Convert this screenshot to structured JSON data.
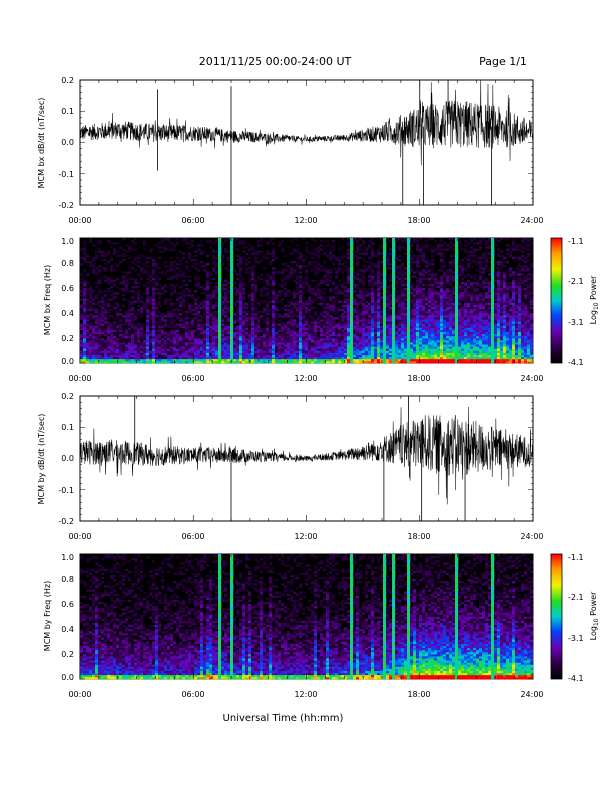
{
  "header": {
    "title": "2011/11/25  00:00-24:00 UT",
    "page": "Page 1/1"
  },
  "xaxis_label": "Universal Time (hh:mm)",
  "colorbar": {
    "label": "Log10 Power",
    "ticks": [
      "-1.1",
      "-2.1",
      "-3.1",
      "-4.1"
    ],
    "colors": [
      "#ff0000",
      "#ff9a00",
      "#f2f200",
      "#22dd22",
      "#00cccc",
      "#0044ff",
      "#6a00b0",
      "#2a0040",
      "#000000"
    ]
  },
  "chart_data": [
    {
      "type": "line",
      "title": "",
      "ylabel": "MCM bx dB/dt (nT/sec)",
      "xlabel": "",
      "x_ticks": [
        "00:00",
        "06:00",
        "12:00",
        "18:00",
        "24:00"
      ],
      "y_ticks": [
        "0.2",
        "0.1",
        "0.0",
        "-0.1",
        "-0.2"
      ],
      "xlim": [
        0,
        24
      ],
      "ylim": [
        -0.2,
        0.2
      ],
      "series": [
        {
          "x": [
            0,
            2,
            4,
            6,
            8,
            10,
            12,
            14,
            16,
            18,
            20,
            22,
            24
          ],
          "y": [
            0.03,
            0.04,
            0.03,
            0.03,
            0.02,
            0.015,
            0.01,
            0.015,
            0.03,
            0.05,
            0.06,
            0.05,
            0.03
          ]
        }
      ],
      "envelope_amplitude": [
        0.025,
        0.03,
        0.03,
        0.025,
        0.02,
        0.015,
        0.008,
        0.01,
        0.03,
        0.07,
        0.08,
        0.07,
        0.04
      ],
      "spikes": [
        {
          "x": 4.1,
          "y": 0.17
        },
        {
          "x": 4.1,
          "y": -0.09
        },
        {
          "x": 8.0,
          "y": 0.18
        },
        {
          "x": 8.0,
          "y": -0.2
        },
        {
          "x": 17.1,
          "y": -0.2
        },
        {
          "x": 18.0,
          "y": 0.2
        },
        {
          "x": 18.2,
          "y": -0.2
        },
        {
          "x": 19.5,
          "y": 0.2
        },
        {
          "x": 21.8,
          "y": -0.2
        }
      ]
    },
    {
      "type": "heatmap",
      "title": "",
      "ylabel": "MCM bx Freq (Hz)",
      "xlabel": "",
      "x_ticks": [
        "00:00",
        "06:00",
        "12:00",
        "18:00",
        "24:00"
      ],
      "y_ticks": [
        "1.0",
        "0.8",
        "0.6",
        "0.4",
        "0.2",
        "0.0"
      ],
      "xlim": [
        0,
        24
      ],
      "ylim": [
        0,
        1.0
      ],
      "zlim": [
        -4.1,
        -1.1
      ],
      "activity_by_hour": [
        0.35,
        0.3,
        0.3,
        0.25,
        0.25,
        0.3,
        0.35,
        0.45,
        0.4,
        0.3,
        0.3,
        0.35,
        0.35,
        0.4,
        0.5,
        0.55,
        0.6,
        0.7,
        0.8,
        0.8,
        0.75,
        0.75,
        0.7,
        0.6
      ],
      "vertical_lines_hours": [
        7.3,
        7.9,
        14.3,
        16.1,
        16.5,
        17.4,
        19.9,
        21.8
      ]
    },
    {
      "type": "line",
      "title": "",
      "ylabel": "MCM by dB/dt (nT/sec)",
      "xlabel": "",
      "x_ticks": [
        "00:00",
        "06:00",
        "12:00",
        "18:00",
        "24:00"
      ],
      "y_ticks": [
        "0.2",
        "0.1",
        "0.0",
        "-0.1",
        "-0.2"
      ],
      "xlim": [
        0,
        24
      ],
      "ylim": [
        -0.2,
        0.2
      ],
      "series": [
        {
          "x": [
            0,
            2,
            4,
            6,
            8,
            10,
            12,
            14,
            16,
            18,
            20,
            22,
            24
          ],
          "y": [
            0.02,
            0.02,
            0.01,
            0.01,
            0.01,
            0.005,
            0.0,
            0.01,
            0.03,
            0.05,
            0.04,
            0.03,
            0.02
          ]
        }
      ],
      "envelope_amplitude": [
        0.04,
        0.04,
        0.035,
        0.025,
        0.025,
        0.015,
        0.008,
        0.015,
        0.04,
        0.09,
        0.1,
        0.07,
        0.045
      ],
      "spikes": [
        {
          "x": 2.9,
          "y": 0.2
        },
        {
          "x": 8.0,
          "y": -0.2
        },
        {
          "x": 16.1,
          "y": -0.2
        },
        {
          "x": 17.4,
          "y": 0.2
        },
        {
          "x": 18.1,
          "y": -0.2
        },
        {
          "x": 20.4,
          "y": -0.2
        }
      ]
    },
    {
      "type": "heatmap",
      "title": "",
      "ylabel": "MCM by Freq (Hz)",
      "xlabel": "",
      "x_ticks": [
        "00:00",
        "06:00",
        "12:00",
        "18:00",
        "24:00"
      ],
      "y_ticks": [
        "1.0",
        "0.8",
        "0.6",
        "0.4",
        "0.2",
        "0.0"
      ],
      "xlim": [
        0,
        24
      ],
      "ylim": [
        0,
        1.0
      ],
      "zlim": [
        -4.1,
        -1.1
      ],
      "activity_by_hour": [
        0.4,
        0.4,
        0.35,
        0.35,
        0.35,
        0.35,
        0.4,
        0.45,
        0.4,
        0.35,
        0.35,
        0.35,
        0.35,
        0.4,
        0.45,
        0.5,
        0.6,
        0.75,
        0.85,
        0.85,
        0.8,
        0.8,
        0.75,
        0.7
      ],
      "vertical_lines_hours": [
        7.3,
        7.9,
        14.3,
        16.1,
        16.5,
        17.4,
        19.9,
        21.8
      ]
    }
  ]
}
